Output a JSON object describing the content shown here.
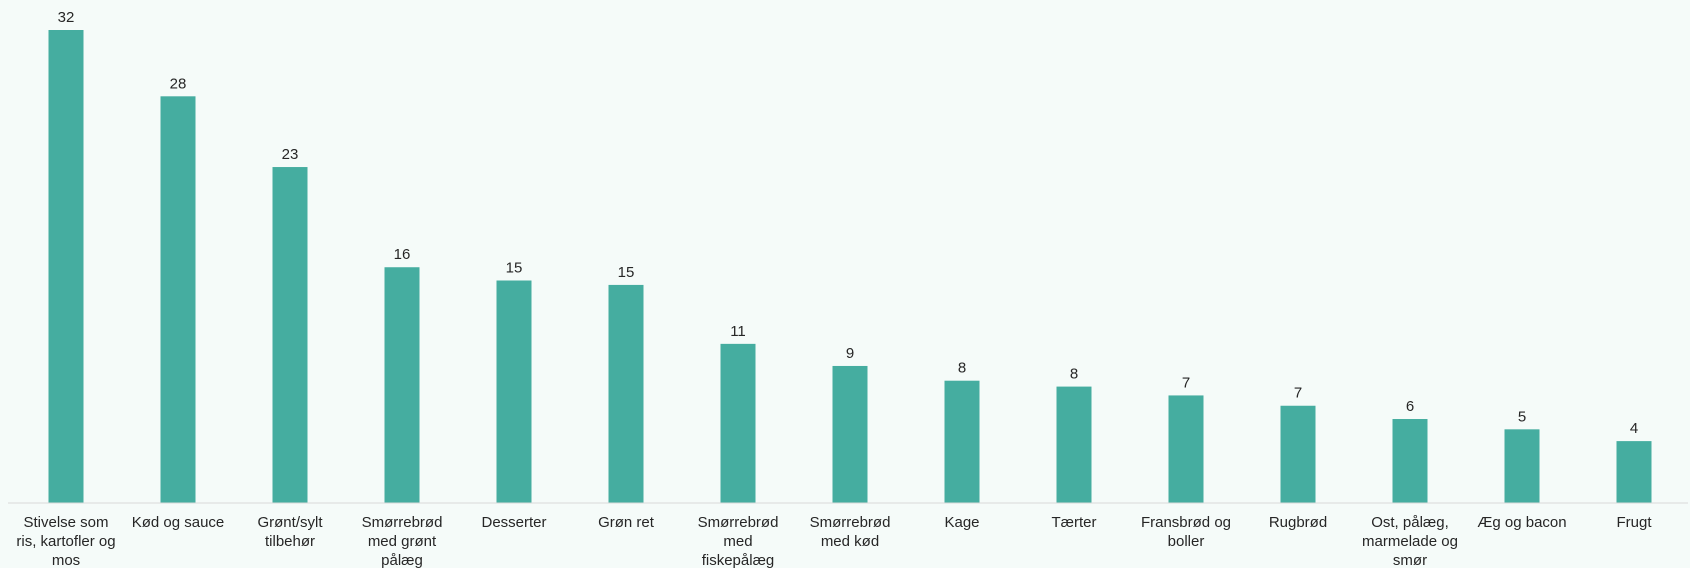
{
  "chart_data": {
    "type": "bar",
    "title": "",
    "xlabel": "",
    "ylabel": "",
    "ylim": [
      0,
      32
    ],
    "grid": false,
    "legend": "none",
    "bar_color": "#45ada0",
    "categories": [
      "Stivelse som ris, kartofler og mos",
      "Kød og sauce",
      "Grønt/sylt tilbehør",
      "Smørrebrød med grønt pålæg",
      "Desserter",
      "Grøn ret",
      "Smørrebrød med fiskepålæg",
      "Smørrebrød med kød",
      "Kage",
      "Tærter",
      "Fransbrød og boller",
      "Rugbrød",
      "Ost, pålæg, marmelade og smør",
      "Æg og bacon",
      "Frugt"
    ],
    "values": [
      32,
      28,
      23,
      16,
      15,
      15,
      11,
      9,
      8,
      8,
      7,
      7,
      6,
      5,
      4
    ],
    "bar_values_precise": [
      32.1,
      27.6,
      22.8,
      16.0,
      15.1,
      14.8,
      10.8,
      9.3,
      8.3,
      7.9,
      7.3,
      6.6,
      5.7,
      5.0,
      4.2
    ],
    "category_lines": [
      [
        "Stivelse som",
        "ris, kartofler og",
        "mos"
      ],
      [
        "Kød og sauce"
      ],
      [
        "Grønt/sylt",
        "tilbehør"
      ],
      [
        "Smørrebrød",
        "med grønt",
        "pålæg"
      ],
      [
        "Desserter"
      ],
      [
        "Grøn ret"
      ],
      [
        "Smørrebrød",
        "med",
        "fiskepålæg"
      ],
      [
        "Smørrebrød",
        "med kød"
      ],
      [
        "Kage"
      ],
      [
        "Tærter"
      ],
      [
        "Fransbrød og",
        "boller"
      ],
      [
        "Rugbrød"
      ],
      [
        "Ost, pålæg,",
        "marmelade og",
        "smør"
      ],
      [
        "Æg og bacon"
      ],
      [
        "Frugt"
      ]
    ]
  }
}
